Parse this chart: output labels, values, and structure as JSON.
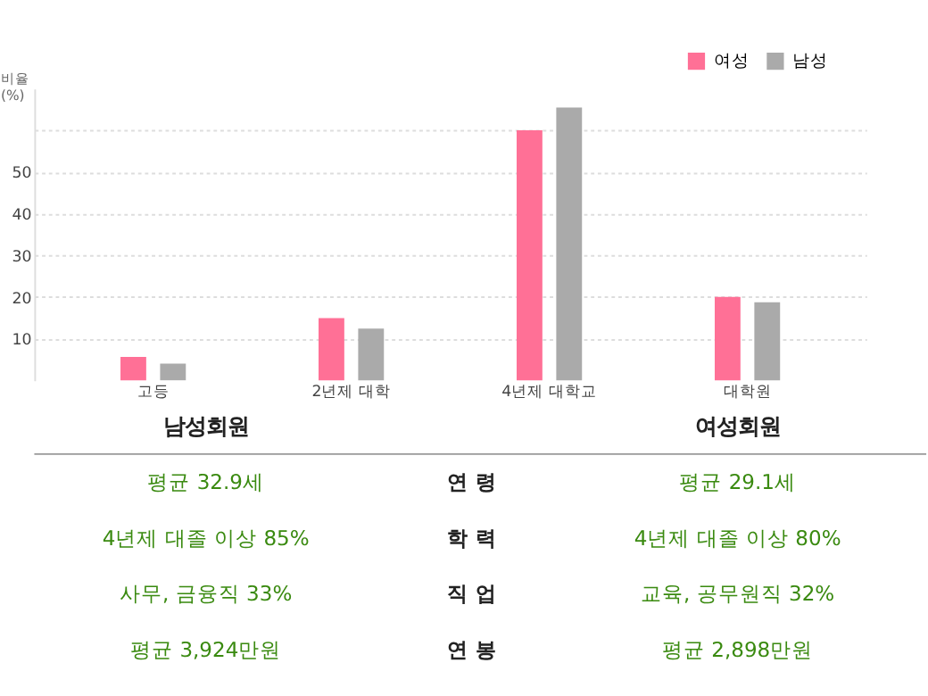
{
  "chart_data": {
    "type": "bar",
    "ylabel": "비율\n(%)",
    "categories": [
      "고등",
      "2년제 대학",
      "4년제 대학교",
      "대학원"
    ],
    "series": [
      {
        "name": "여성",
        "color": "#ff7096",
        "values": [
          5.6,
          14.9,
          60,
          20
        ]
      },
      {
        "name": "남성",
        "color": "#aaaaaa",
        "values": [
          4.0,
          12.4,
          65.5,
          18.7
        ]
      }
    ],
    "ylim": [
      0,
      70
    ],
    "yticks": [
      10,
      20,
      30,
      40,
      50,
      {
        "value": 60,
        "label": null
      }
    ],
    "grid": "y",
    "legend": "top right",
    "annotations": [
      "남성회원",
      "여성회원",
      "평균 32.9세",
      "연 령",
      "평균 29.1세",
      "4년제 대졸 이상 85%",
      "학 력",
      "4년제 대졸 이상 80%",
      "사무, 금융직 33%",
      "직 업",
      "교육, 공무원직 32%",
      "평균 3,924만원",
      "연 봉",
      "평균 2,898만원"
    ]
  }
}
